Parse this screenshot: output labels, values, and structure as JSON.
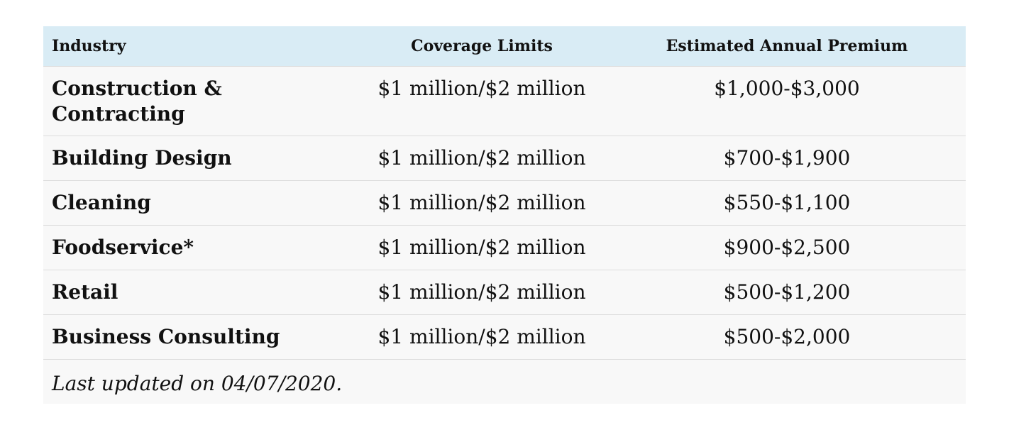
{
  "table": {
    "headers": {
      "industry": "Industry",
      "coverage": "Coverage Limits",
      "premium": "Estimated Annual Premium"
    },
    "rows": [
      {
        "industry": "Construction & Contracting",
        "coverage": "$1 million/$2 million",
        "premium": "$1,000-$3,000"
      },
      {
        "industry": "Building Design",
        "coverage": "$1 million/$2 million",
        "premium": "$700-$1,900"
      },
      {
        "industry": "Cleaning",
        "coverage": "$1 million/$2 million",
        "premium": "$550-$1,100"
      },
      {
        "industry": "Foodservice*",
        "coverage": "$1 million/$2 million",
        "premium": "$900-$2,500"
      },
      {
        "industry": "Retail",
        "coverage": "$1 million/$2 million",
        "premium": "$500-$1,200"
      },
      {
        "industry": "Business Consulting",
        "coverage": "$1 million/$2 million",
        "premium": "$500-$2,000"
      }
    ],
    "footnote": "Last updated on 04/07/2020."
  },
  "colors": {
    "header_bg": "#d9ecf5",
    "row_bg": "#f8f8f8",
    "row_border": "#dcdcdc"
  }
}
